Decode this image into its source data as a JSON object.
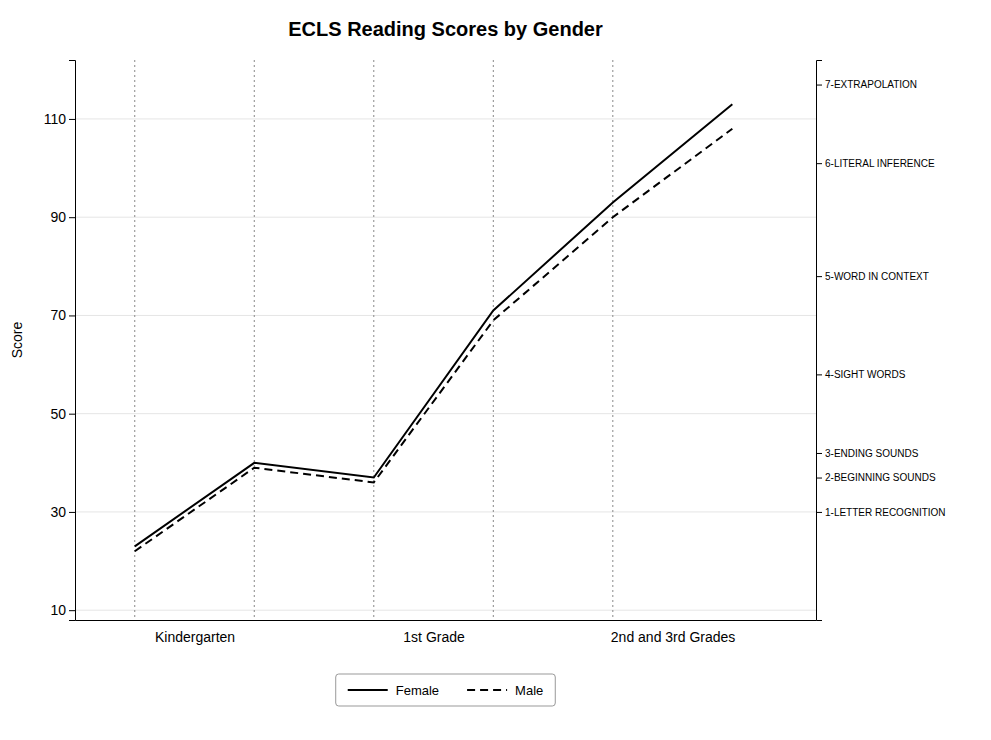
{
  "chart_data": {
    "type": "line",
    "title": "ECLS Reading Scores by Gender",
    "ylabel": "Score",
    "x": [
      1,
      2,
      3,
      4,
      5,
      6
    ],
    "series": [
      {
        "name": "Female",
        "color": "black",
        "line_style": "solid",
        "values": [
          23,
          40,
          37,
          71,
          93,
          113
        ]
      },
      {
        "name": "Male",
        "color": "black",
        "line_style": "dashed",
        "values": [
          22,
          39,
          36,
          69,
          90,
          108
        ]
      }
    ],
    "xlim": [
      0.5,
      6.7
    ],
    "xticks": [
      {
        "value": 1.5,
        "label": "Kindergarten"
      },
      {
        "value": 3.5,
        "label": "1st Grade"
      },
      {
        "value": 5.5,
        "label": "2nd and 3rd Grades"
      }
    ],
    "vlines": [
      1,
      2,
      3,
      4,
      5
    ],
    "ylim": [
      8,
      122
    ],
    "yticks": [
      10,
      30,
      50,
      70,
      90,
      110
    ],
    "y2lim": [
      8,
      122
    ],
    "y2ticks": [
      {
        "value": 117,
        "label": "7-EXTRAPOLATION"
      },
      {
        "value": 101,
        "label": "6-LITERAL INFERENCE"
      },
      {
        "value": 78,
        "label": "5-WORD IN CONTEXT"
      },
      {
        "value": 58,
        "label": "4-SIGHT WORDS"
      },
      {
        "value": 42,
        "label": "3-ENDING SOUNDS"
      },
      {
        "value": 37,
        "label": "2-BEGINNING SOUNDS"
      },
      {
        "value": 30,
        "label": "1-LETTER RECOGNITION"
      }
    ],
    "grid": true,
    "legend": "bottom"
  }
}
